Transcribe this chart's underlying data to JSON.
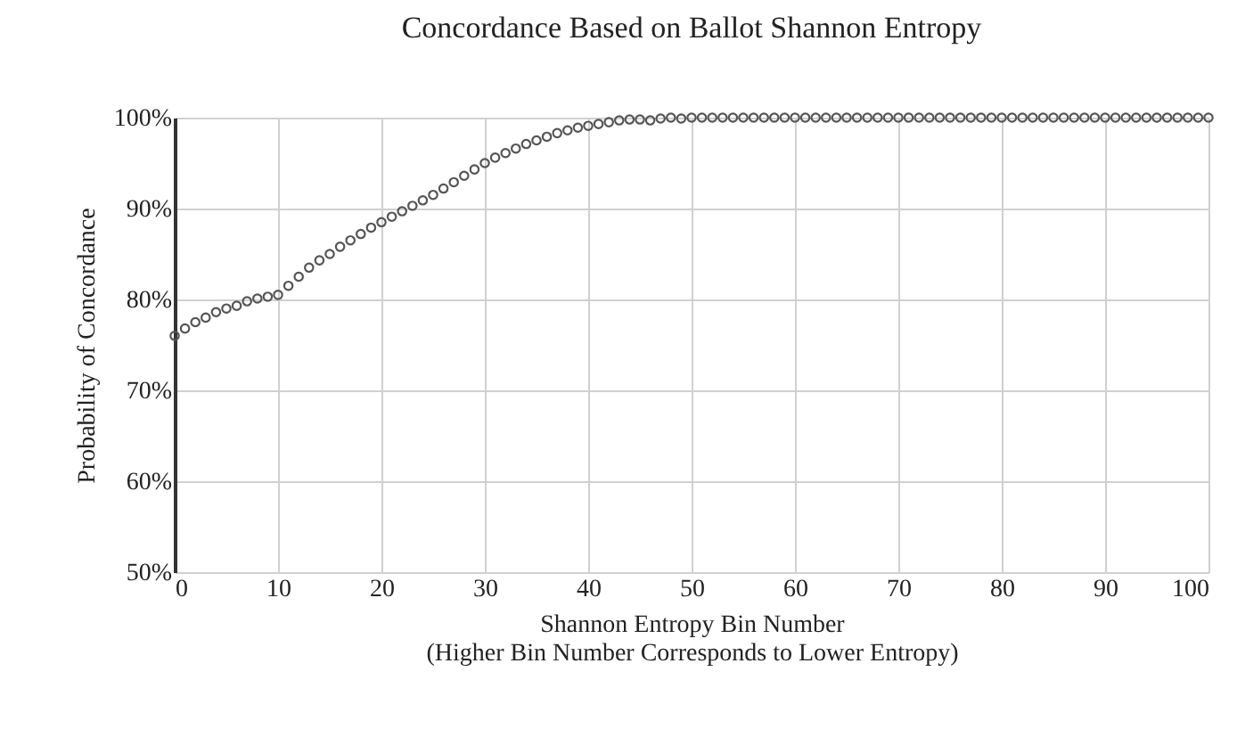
{
  "chart_data": {
    "type": "scatter",
    "title": "Concordance Based on Ballot Shannon Entropy",
    "xlabel": "Shannon Entropy Bin Number\n(Higher Bin Number Corresponds to Lower Entropy)",
    "ylabel": "Probability of Concordance",
    "x": [
      0,
      1,
      2,
      3,
      4,
      5,
      6,
      7,
      8,
      9,
      10,
      11,
      12,
      13,
      14,
      15,
      16,
      17,
      18,
      19,
      20,
      21,
      22,
      23,
      24,
      25,
      26,
      27,
      28,
      29,
      30,
      31,
      32,
      33,
      34,
      35,
      36,
      37,
      38,
      39,
      40,
      41,
      42,
      43,
      44,
      45,
      46,
      47,
      48,
      49,
      50,
      51,
      52,
      53,
      54,
      55,
      56,
      57,
      58,
      59,
      60,
      61,
      62,
      63,
      64,
      65,
      66,
      67,
      68,
      69,
      70,
      71,
      72,
      73,
      74,
      75,
      76,
      77,
      78,
      79,
      80,
      81,
      82,
      83,
      84,
      85,
      86,
      87,
      88,
      89,
      90,
      91,
      92,
      93,
      94,
      95,
      96,
      97,
      98,
      99,
      100
    ],
    "series": [
      {
        "color": "#555555",
        "values": [
          76,
          76.8,
          77.5,
          78,
          78.6,
          79,
          79.3,
          79.8,
          80.1,
          80.3,
          80.5,
          81.5,
          82.5,
          83.5,
          84.3,
          85,
          85.8,
          86.5,
          87.2,
          87.9,
          88.5,
          89.1,
          89.7,
          90.3,
          90.9,
          91.5,
          92.2,
          92.9,
          93.6,
          94.3,
          95,
          95.6,
          96.1,
          96.6,
          97.1,
          97.5,
          97.9,
          98.3,
          98.6,
          98.9,
          99.1,
          99.3,
          99.5,
          99.7,
          99.8,
          99.8,
          99.7,
          99.9,
          100,
          99.9,
          100,
          100,
          100,
          100,
          100,
          100,
          100,
          100,
          100,
          100,
          100,
          100,
          100,
          100,
          100,
          100,
          100,
          100,
          100,
          100,
          100,
          100,
          100,
          100,
          100,
          100,
          100,
          100,
          100,
          100,
          100,
          100,
          100,
          100,
          100,
          100,
          100,
          100,
          100,
          100,
          100,
          100,
          100,
          100,
          100,
          100,
          100,
          100,
          100,
          100,
          100
        ]
      }
    ],
    "xlim": [
      0,
      100
    ],
    "xticks": [
      0,
      10,
      20,
      30,
      40,
      50,
      60,
      70,
      80,
      90,
      100
    ],
    "ylim": [
      50,
      100
    ],
    "yticks": [
      {
        "value": 50,
        "label": "50%"
      },
      {
        "value": 60,
        "label": "60%"
      },
      {
        "value": 70,
        "label": "70%"
      },
      {
        "value": 80,
        "label": "80%"
      },
      {
        "value": 90,
        "label": "90%"
      },
      {
        "value": 100,
        "label": "100%"
      }
    ],
    "grid": true,
    "marker": "circle"
  }
}
